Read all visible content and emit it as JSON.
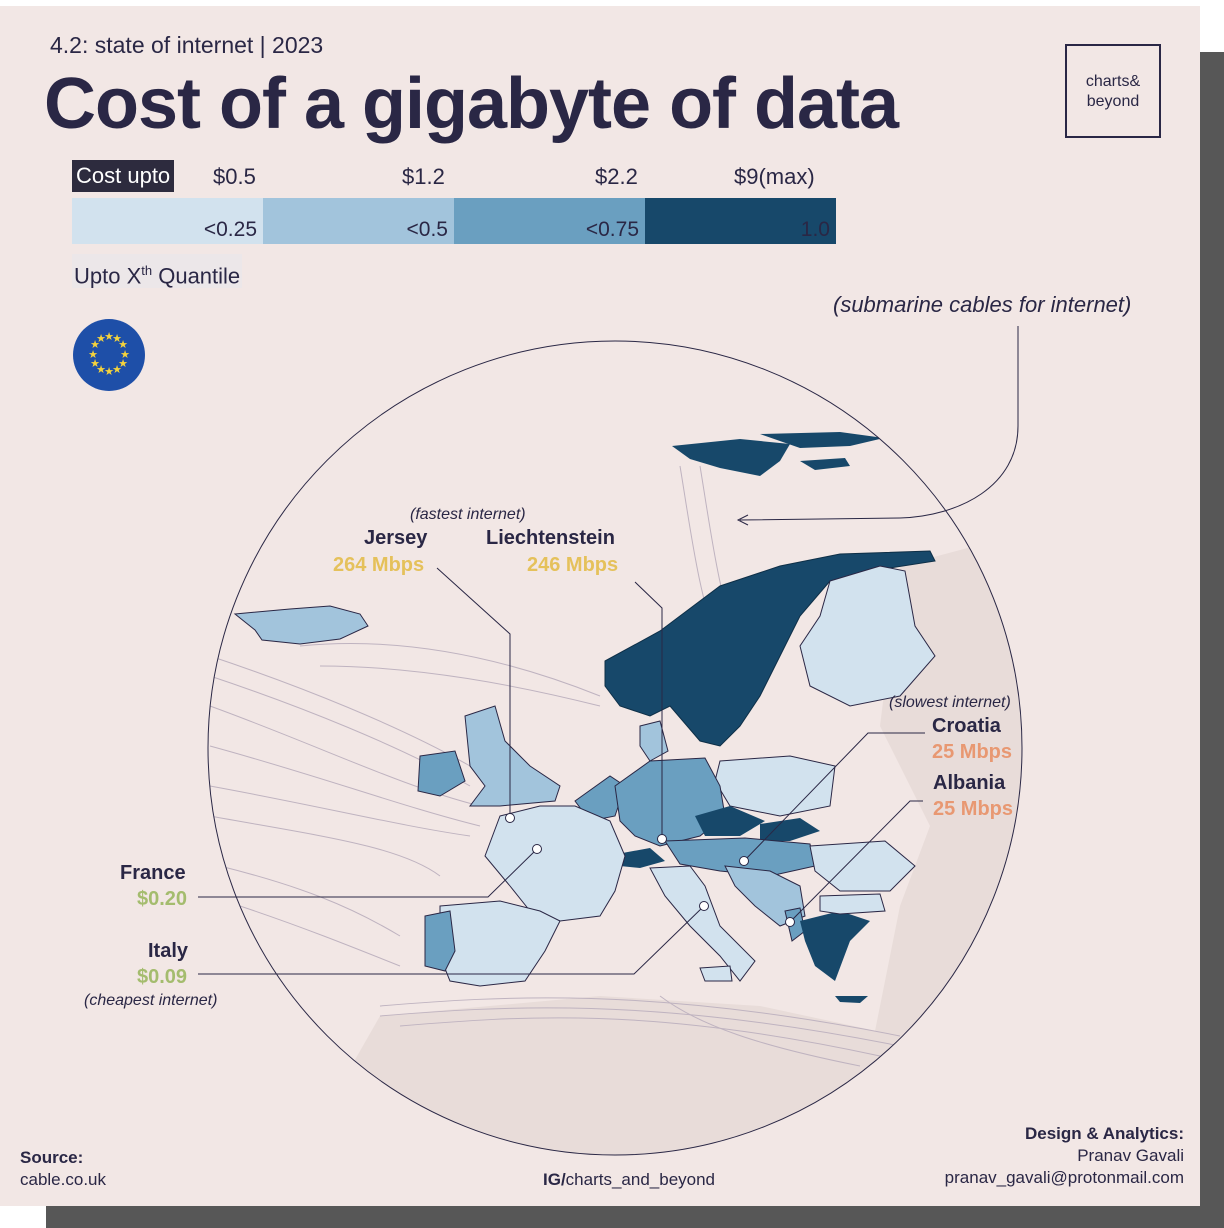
{
  "header": {
    "subtitle": "4.2: state of internet | 2023",
    "title": "Cost of a gigabyte of data",
    "logo_line1": "charts&",
    "logo_line2": "beyond"
  },
  "legend": {
    "cost_label": "Cost upto",
    "cost_values": [
      "$0.5",
      "$1.2",
      "$2.2",
      "$9(max)"
    ],
    "quantile_labels": [
      "<0.25",
      "<0.5",
      "<0.75",
      "1.0"
    ],
    "colors": [
      "#d2e2ee",
      "#a2c4dc",
      "#6a9fc0",
      "#17486a"
    ],
    "quantile_title_pre": "Upto X",
    "quantile_title_sup": "th",
    "quantile_title_post": " Quantile"
  },
  "annotations": {
    "submarine": "(submarine cables for internet)",
    "fastest": "(fastest internet)",
    "slowest": "(slowest internet)",
    "cheapest": "(cheapest internet)"
  },
  "callouts": {
    "jersey": {
      "name": "Jersey",
      "value": "264 Mbps"
    },
    "liechtenstein": {
      "name": "Liechtenstein",
      "value": "246 Mbps"
    },
    "croatia": {
      "name": "Croatia",
      "value": "25 Mbps"
    },
    "albania": {
      "name": "Albania",
      "value": "25 Mbps"
    },
    "france": {
      "name": "France",
      "value": "$0.20"
    },
    "italy": {
      "name": "Italy",
      "value": "$0.09"
    }
  },
  "footer": {
    "source_label": "Source:",
    "source_value": "cable.co.uk",
    "ig_prefix": "IG/",
    "ig_handle": "charts_and_beyond",
    "design_label": "Design & Analytics:",
    "author": "Pranav Gavali",
    "email": "pranav_gavali@protonmail.com"
  },
  "icons": {
    "eu_flag": "eu-flag-icon"
  }
}
